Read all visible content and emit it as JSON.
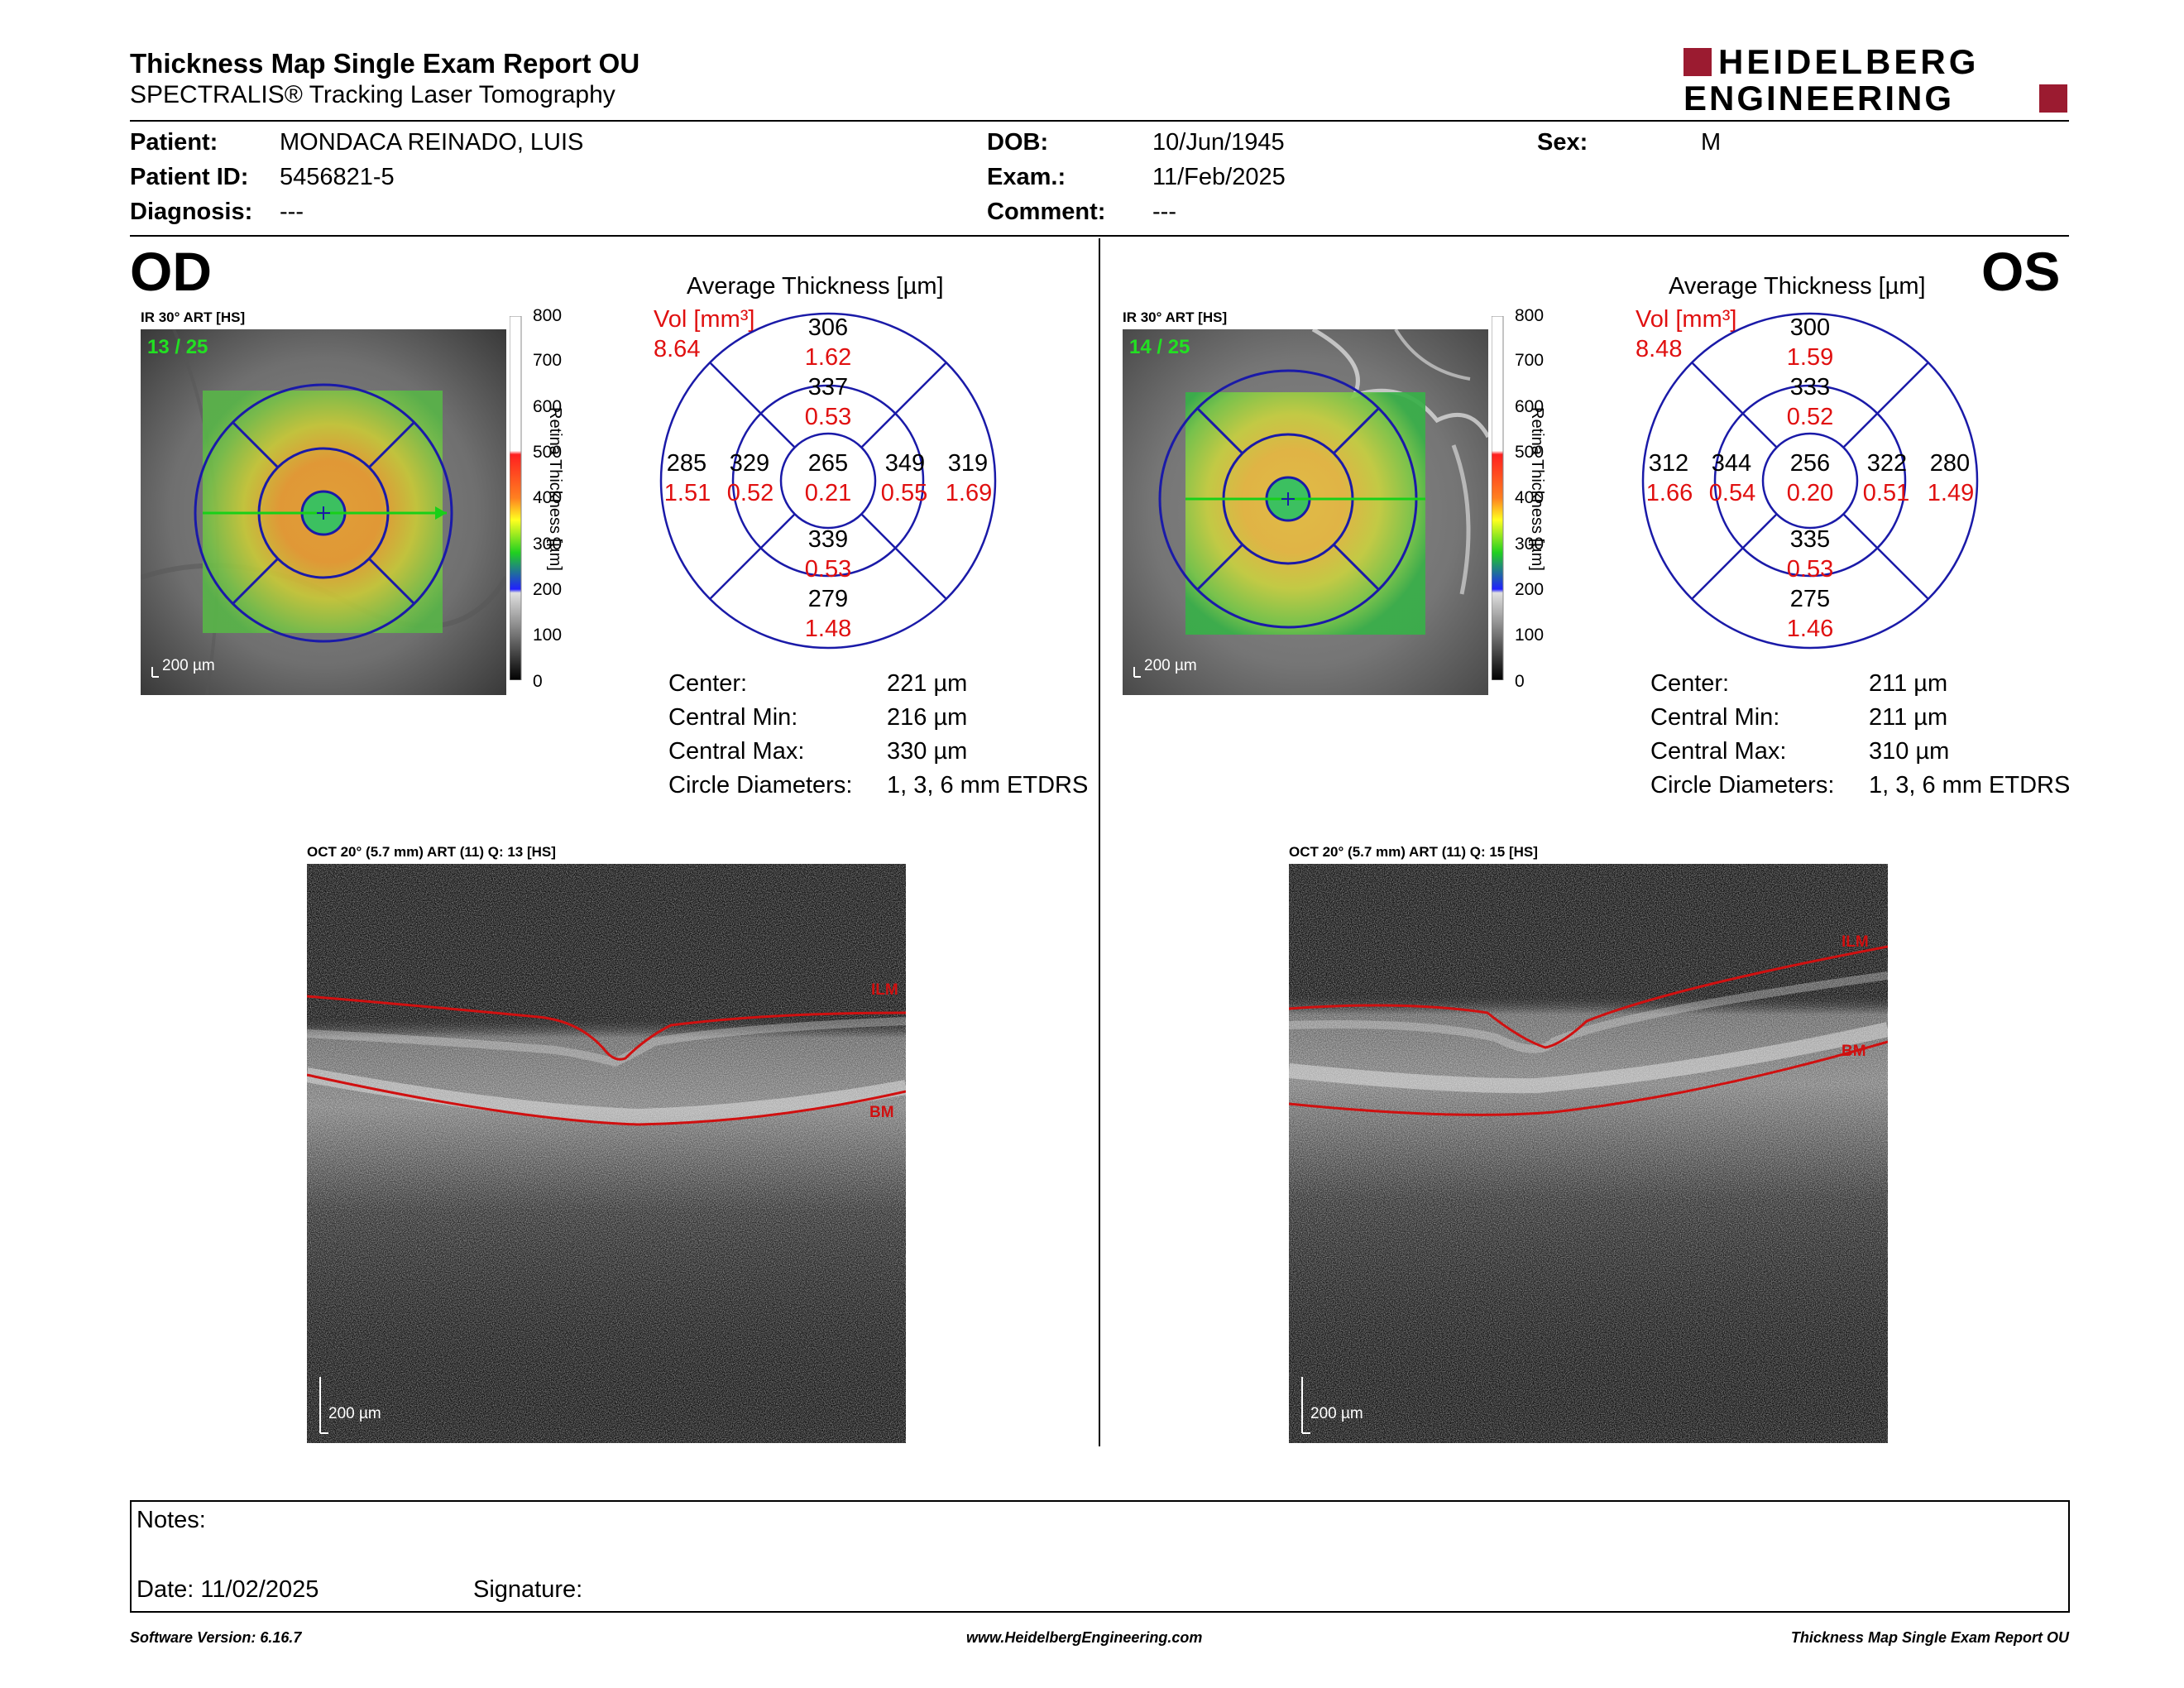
{
  "header": {
    "title": "Thickness Map Single Exam Report OU",
    "subtitle": "SPECTRALIS® Tracking Laser Tomography",
    "logo_top": "HEIDELBERG",
    "logo_bottom": "ENGINEERING",
    "brand_color": "#9b1b30"
  },
  "patient": {
    "patient_label": "Patient:",
    "patient_value": "MONDACA REINADO, LUIS",
    "id_label": "Patient ID:",
    "id_value": "5456821-5",
    "diagnosis_label": "Diagnosis:",
    "diagnosis_value": "---",
    "dob_label": "DOB:",
    "dob_value": "10/Jun/1945",
    "exam_label": "Exam.:",
    "exam_value": "11/Feb/2025",
    "comment_label": "Comment:",
    "comment_value": "---",
    "sex_label": "Sex:",
    "sex_value": "M"
  },
  "od": {
    "eye_label": "OD",
    "ir_caption": "IR 30° ART [HS]",
    "ir_index": "13 / 25",
    "ir_scale": "200 µm",
    "colorbar_ticks": [
      "800",
      "700",
      "600",
      "500",
      "400",
      "300",
      "200",
      "100",
      "0"
    ],
    "colorbar_title": "Retina Thickness [µm]",
    "avg_title": "Average Thickness [µm]",
    "vol_label": "Vol [mm³]",
    "vol_value": "8.64",
    "grid": {
      "center": {
        "t": "265",
        "v": "0.21"
      },
      "inner_sup": {
        "t": "337",
        "v": "0.53"
      },
      "inner_inf": {
        "t": "339",
        "v": "0.53"
      },
      "inner_left": {
        "t": "329",
        "v": "0.52"
      },
      "inner_right": {
        "t": "349",
        "v": "0.55"
      },
      "outer_sup": {
        "t": "306",
        "v": "1.62"
      },
      "outer_inf": {
        "t": "279",
        "v": "1.48"
      },
      "outer_left": {
        "t": "285",
        "v": "1.51"
      },
      "outer_right": {
        "t": "319",
        "v": "1.69"
      }
    },
    "stats": [
      {
        "label": "Center:",
        "value": "221 µm"
      },
      {
        "label": "Central Min:",
        "value": "216 µm"
      },
      {
        "label": "Central Max:",
        "value": "330 µm"
      },
      {
        "label": "Circle Diameters:",
        "value": "1, 3, 6 mm ETDRS"
      }
    ],
    "oct_caption": "OCT 20° (5.7 mm) ART (11) Q: 13 [HS]",
    "oct_scale": "200 µm",
    "ilm_label": "ILM",
    "bm_label": "BM"
  },
  "os": {
    "eye_label": "OS",
    "ir_caption": "IR 30° ART [HS]",
    "ir_index": "14 / 25",
    "ir_scale": "200 µm",
    "colorbar_ticks": [
      "800",
      "700",
      "600",
      "500",
      "400",
      "300",
      "200",
      "100",
      "0"
    ],
    "colorbar_title": "Retina Thickness [µm]",
    "avg_title": "Average Thickness [µm]",
    "vol_label": "Vol [mm³]",
    "vol_value": "8.48",
    "grid": {
      "center": {
        "t": "256",
        "v": "0.20"
      },
      "inner_sup": {
        "t": "333",
        "v": "0.52"
      },
      "inner_inf": {
        "t": "335",
        "v": "0.53"
      },
      "inner_left": {
        "t": "344",
        "v": "0.54"
      },
      "inner_right": {
        "t": "322",
        "v": "0.51"
      },
      "outer_sup": {
        "t": "300",
        "v": "1.59"
      },
      "outer_inf": {
        "t": "275",
        "v": "1.46"
      },
      "outer_left": {
        "t": "312",
        "v": "1.66"
      },
      "outer_right": {
        "t": "280",
        "v": "1.49"
      }
    },
    "stats": [
      {
        "label": "Center:",
        "value": "211 µm"
      },
      {
        "label": "Central Min:",
        "value": "211 µm"
      },
      {
        "label": "Central Max:",
        "value": "310 µm"
      },
      {
        "label": "Circle Diameters:",
        "value": "1, 3, 6 mm ETDRS"
      }
    ],
    "oct_caption": "OCT 20° (5.7 mm) ART (11) Q: 15 [HS]",
    "oct_scale": "200 µm",
    "ilm_label": "ILM",
    "bm_label": "BM"
  },
  "notes": {
    "notes_label": "Notes:",
    "date_label": "Date: 11/02/2025",
    "signature_label": "Signature:"
  },
  "footer": {
    "software": "Software Version: 6.16.7",
    "website": "www.HeidelbergEngineering.com",
    "report": "Thickness Map Single Exam Report OU"
  }
}
